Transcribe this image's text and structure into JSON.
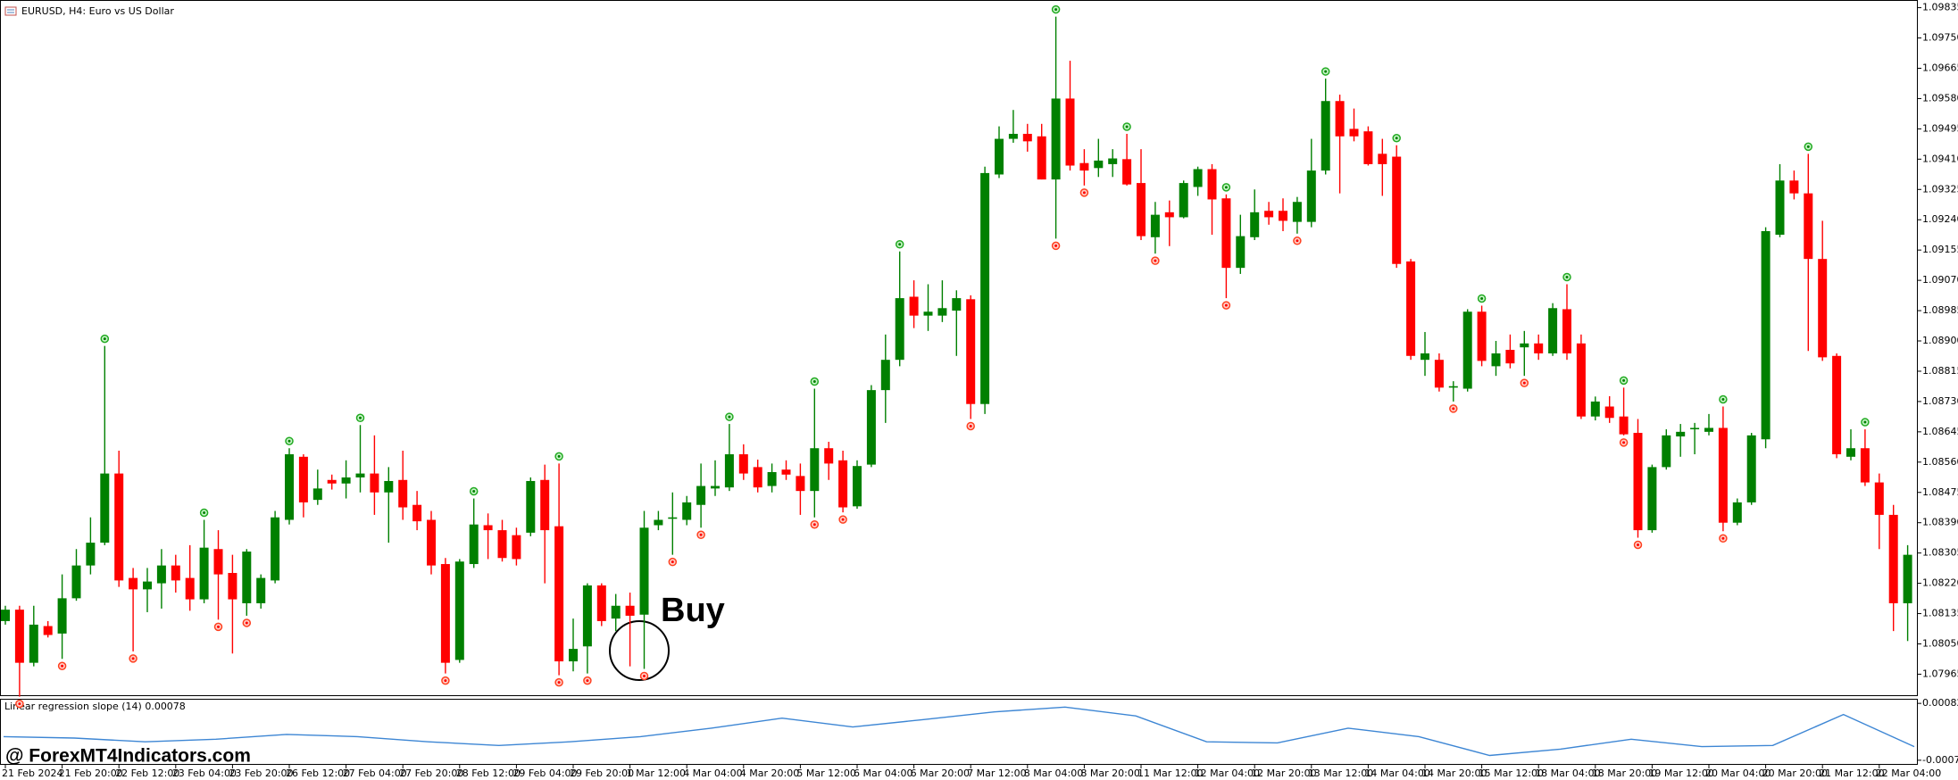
{
  "chart_data": [
    {
      "type": "candlestick",
      "title": "EURUSD, H4:  Euro vs US Dollar",
      "annotation": "Buy",
      "watermark": "@ ForexMT4Indicators.com",
      "up_color": "#008000",
      "down_color": "#ff0000",
      "categories": [
        "21 Feb 2024",
        null,
        null,
        null,
        "21 Feb 20:00",
        null,
        null,
        null,
        "22 Feb 12:00",
        null,
        null,
        null,
        "23 Feb 04:00",
        null,
        null,
        null,
        "23 Feb 20:00",
        null,
        null,
        null,
        "26 Feb 12:00",
        null,
        null,
        null,
        "27 Feb 04:00",
        null,
        null,
        null,
        "27 Feb 20:00",
        null,
        null,
        null,
        "28 Feb 12:00",
        null,
        null,
        null,
        "29 Feb 04:00",
        null,
        null,
        null,
        "29 Feb 20:00",
        null,
        null,
        null,
        "1 Mar 12:00",
        null,
        null,
        null,
        "4 Mar 04:00",
        null,
        null,
        null,
        "4 Mar 20:00",
        null,
        null,
        null,
        "5 Mar 12:00",
        null,
        null,
        null,
        "6 Mar 04:00",
        null,
        null,
        null,
        "6 Mar 20:00",
        null,
        null,
        null,
        "7 Mar 12:00",
        null,
        null,
        null,
        "8 Mar 04:00",
        null,
        null,
        null,
        "8 Mar 20:00",
        null,
        null,
        null,
        "11 Mar 12:00",
        null,
        null,
        null,
        "12 Mar 04:00",
        null,
        null,
        null,
        "12 Mar 20:00",
        null,
        null,
        null,
        "13 Mar 12:00",
        null,
        null,
        null,
        "14 Mar 04:00",
        null,
        null,
        null,
        "14 Mar 20:00",
        null,
        null,
        null,
        "15 Mar 12:00",
        null,
        null,
        null,
        "18 Mar 04:00",
        null,
        null,
        null,
        "18 Mar 20:00",
        null,
        null,
        null,
        "19 Mar 12:00",
        null,
        null,
        null,
        "20 Mar 04:00",
        null,
        null,
        null,
        "20 Mar 20:00",
        null,
        null,
        null,
        "21 Mar 12:00",
        null,
        null,
        null,
        "22 Mar 04:00",
        null,
        null
      ],
      "open": [
        1.08114,
        1.08146,
        1.07997,
        1.081,
        1.08079,
        1.08178,
        1.0827,
        1.08334,
        1.08528,
        1.08235,
        1.08203,
        1.0822,
        1.0827,
        1.08235,
        1.08175,
        1.08316,
        1.08249,
        1.08164,
        1.08164,
        1.08228,
        1.08398,
        1.08575,
        1.08454,
        1.0851,
        1.085,
        1.08517,
        1.08528,
        1.08475,
        1.0851,
        1.0844,
        1.08398,
        1.08274,
        1.08005,
        1.08274,
        1.08383,
        1.08369,
        1.08355,
        1.08362,
        1.0851,
        1.0838,
        1.08001,
        1.08043,
        1.08214,
        1.08121,
        1.08157,
        1.08132,
        1.08383,
        1.08401,
        1.08398,
        1.0844,
        1.08486,
        1.08489,
        1.08582,
        1.08546,
        1.08493,
        1.08539,
        1.08521,
        1.08479,
        1.08599,
        1.08565,
        1.08436,
        1.08553,
        1.08762,
        1.08847,
        1.09024,
        1.08971,
        1.08971,
        1.08985,
        1.09017,
        1.08723,
        1.09367,
        1.09467,
        1.09481,
        1.09474,
        1.09353,
        1.0958,
        1.09399,
        1.09385,
        1.09396,
        1.0941,
        1.09343,
        1.09191,
        1.09261,
        1.09247,
        1.09332,
        1.09382,
        1.093,
        1.09105,
        1.09191,
        1.09265,
        1.09265,
        1.09234,
        1.09234,
        1.09378,
        1.09573,
        1.09495,
        1.09488,
        1.09425,
        1.09417,
        1.09123,
        1.08847,
        1.08847,
        1.08769,
        1.08766,
        1.08982,
        1.08829,
        1.08875,
        1.08882,
        1.08893,
        1.08865,
        1.08989,
        1.08893,
        1.08688,
        1.08716,
        1.08688,
        1.08642,
        1.08369,
        1.08546,
        1.08632,
        1.08652,
        1.08645,
        1.08656,
        1.0839,
        1.08447,
        1.08624,
        1.09198,
        1.0935,
        1.09314,
        1.0913,
        1.08858,
        1.08575,
        1.08599,
        1.08503,
        1.08412,
        1.08164
      ],
      "high": [
        1.08157,
        1.08157,
        1.08157,
        1.08114,
        1.08245,
        1.08316,
        1.08405,
        1.08886,
        1.08592,
        1.08263,
        1.08263,
        1.08316,
        1.083,
        1.08327,
        1.08398,
        1.08369,
        1.083,
        1.08316,
        1.08245,
        1.08423,
        1.08599,
        1.08582,
        1.08539,
        1.08525,
        1.08565,
        1.08664,
        1.08635,
        1.08546,
        1.08592,
        1.08479,
        1.08423,
        1.08291,
        1.08288,
        1.08458,
        1.08416,
        1.08398,
        1.08376,
        1.08517,
        1.08553,
        1.08556,
        1.08121,
        1.0822,
        1.0822,
        1.0819,
        1.08194,
        1.08423,
        1.08423,
        1.08475,
        1.08465,
        1.08556,
        1.08565,
        1.08667,
        1.0861,
        1.08567,
        1.08556,
        1.08565,
        1.08556,
        1.08766,
        1.08617,
        1.08592,
        1.08565,
        1.08776,
        1.08918,
        1.09151,
        1.0907,
        1.09059,
        1.0907,
        1.09042,
        1.09028,
        1.09389,
        1.09502,
        1.09548,
        1.09509,
        1.09509,
        1.0981,
        1.09686,
        1.09438,
        1.09467,
        1.09438,
        1.09481,
        1.09438,
        1.0929,
        1.09294,
        1.0935,
        1.09389,
        1.09396,
        1.09311,
        1.09254,
        1.09325,
        1.0929,
        1.093,
        1.09304,
        1.09467,
        1.09636,
        1.09591,
        1.09552,
        1.09502,
        1.09467,
        1.09449,
        1.0913,
        1.08925,
        1.08865,
        1.08787,
        1.08989,
        1.08999,
        1.089,
        1.08918,
        1.08928,
        1.08918,
        1.09006,
        1.09059,
        1.08918,
        1.08744,
        1.08745,
        1.08769,
        1.08681,
        1.08553,
        1.08652,
        1.08667,
        1.0867,
        1.08695,
        1.08716,
        1.08458,
        1.08642,
        1.09219,
        1.09396,
        1.09378,
        1.09425,
        1.09237,
        1.08865,
        1.08652,
        1.08652,
        1.08528,
        1.0844,
        1.08327
      ],
      "low": [
        1.08104,
        1.07902,
        1.07987,
        1.08068,
        1.08008,
        1.08171,
        1.08245,
        1.08327,
        1.0821,
        1.08029,
        1.08139,
        1.08149,
        1.08194,
        1.08143,
        1.08164,
        1.08118,
        1.08023,
        1.08129,
        1.08149,
        1.0822,
        1.08385,
        1.08405,
        1.0844,
        1.08483,
        1.08458,
        1.08475,
        1.08412,
        1.08334,
        1.08398,
        1.08369,
        1.08245,
        1.07967,
        1.07997,
        1.08263,
        1.08288,
        1.08281,
        1.0827,
        1.08352,
        1.0822,
        1.07962,
        1.07973,
        1.07967,
        1.081,
        1.08086,
        1.07987,
        1.0798,
        1.08369,
        1.083,
        1.08383,
        1.08376,
        1.08465,
        1.08479,
        1.0851,
        1.08475,
        1.08475,
        1.0851,
        1.08412,
        1.08405,
        1.0851,
        1.08419,
        1.08429,
        1.08546,
        1.0867,
        1.08829,
        1.08936,
        1.08928,
        1.08953,
        1.08858,
        1.08681,
        1.08695,
        1.09357,
        1.09456,
        1.09431,
        1.09353,
        1.09187,
        1.09378,
        1.09336,
        1.0936,
        1.0936,
        1.09336,
        1.09183,
        1.09145,
        1.09166,
        1.09244,
        1.09307,
        1.09198,
        1.0902,
        1.09088,
        1.09183,
        1.09226,
        1.09208,
        1.09201,
        1.09219,
        1.09367,
        1.09314,
        1.0946,
        1.09392,
        1.09307,
        1.09105,
        1.08847,
        1.08802,
        1.08758,
        1.0873,
        1.08758,
        1.08829,
        1.08802,
        1.08823,
        1.08802,
        1.08847,
        1.08858,
        1.08847,
        1.08681,
        1.08677,
        1.0867,
        1.08635,
        1.08348,
        1.08362,
        1.08539,
        1.08575,
        1.08582,
        1.08635,
        1.08366,
        1.08383,
        1.0844,
        1.08599,
        1.09191,
        1.09297,
        1.08872,
        1.08844,
        1.08571,
        1.08565,
        1.08493,
        1.08316,
        1.08086,
        1.08058
      ],
      "close": [
        1.08146,
        1.07997,
        1.08104,
        1.08075,
        1.08178,
        1.0827,
        1.08334,
        1.08528,
        1.08228,
        1.08203,
        1.08225,
        1.0827,
        1.08228,
        1.08175,
        1.0832,
        1.08245,
        1.08175,
        1.08309,
        1.08235,
        1.08405,
        1.08582,
        1.08447,
        1.08486,
        1.085,
        1.08517,
        1.08528,
        1.08475,
        1.08507,
        1.08433,
        1.08394,
        1.0827,
        1.07997,
        1.08281,
        1.08385,
        1.08369,
        1.08291,
        1.08288,
        1.08507,
        1.08369,
        1.08001,
        1.08036,
        1.08214,
        1.08114,
        1.08157,
        1.08129,
        1.08376,
        1.08398,
        1.08405,
        1.08447,
        1.08493,
        1.08493,
        1.08582,
        1.08528,
        1.08489,
        1.08532,
        1.08525,
        1.08479,
        1.08599,
        1.08556,
        1.08433,
        1.08549,
        1.08762,
        1.08847,
        1.0902,
        1.08971,
        1.08982,
        1.08992,
        1.0902,
        1.08723,
        1.09371,
        1.09467,
        1.09481,
        1.0946,
        1.09353,
        1.0958,
        1.09392,
        1.09378,
        1.09406,
        1.09412,
        1.09339,
        1.09194,
        1.09254,
        1.09247,
        1.09343,
        1.09382,
        1.09297,
        1.09105,
        1.09194,
        1.09261,
        1.09247,
        1.09237,
        1.0929,
        1.09378,
        1.09573,
        1.09474,
        1.09474,
        1.09396,
        1.09396,
        1.09116,
        1.08858,
        1.08865,
        1.08769,
        1.08773,
        1.08982,
        1.08844,
        1.08865,
        1.08837,
        1.08893,
        1.08865,
        1.08992,
        1.08865,
        1.08688,
        1.0873,
        1.08684,
        1.08638,
        1.08369,
        1.08546,
        1.08635,
        1.08645,
        1.08656,
        1.08656,
        1.0839,
        1.08447,
        1.08635,
        1.09208,
        1.0935,
        1.09314,
        1.0913,
        1.08854,
        1.08582,
        1.08599,
        1.08503,
        1.08412,
        1.08164,
        1.083
      ],
      "signals_high": [
        7,
        14,
        20,
        25,
        33,
        39,
        51,
        57,
        63,
        74,
        79,
        86,
        93,
        98,
        104,
        110,
        114,
        121,
        127,
        131
      ],
      "signals_low": [
        1,
        4,
        9,
        15,
        17,
        31,
        39,
        41,
        45,
        47,
        49,
        57,
        59,
        68,
        74,
        76,
        81,
        86,
        91,
        102,
        107,
        114,
        115,
        121
      ],
      "ylim": [
        1.07906,
        1.09849
      ],
      "yticks": [
        1.09835,
        {
          "value": 1.0975,
          "label": "1.09750"
        },
        1.09665,
        {
          "value": 1.0958,
          "label": "1.09580"
        },
        1.09495,
        {
          "value": 1.0941,
          "label": "1.09410"
        },
        1.09325,
        {
          "value": 1.0924,
          "label": "1.09240"
        },
        1.09155,
        {
          "value": 1.0907,
          "label": "1.09070"
        },
        1.08985,
        {
          "value": 1.089,
          "label": "1.08900"
        },
        1.08815,
        {
          "value": 1.0873,
          "label": "1.08730"
        },
        1.08645,
        {
          "value": 1.0856,
          "label": "1.08560"
        },
        1.08475,
        {
          "value": 1.0839,
          "label": "1.08390"
        },
        1.08305,
        {
          "value": 1.0822,
          "label": "1.08220"
        },
        1.08135,
        {
          "value": 1.0805,
          "label": "1.08050"
        },
        1.07965
      ]
    },
    {
      "type": "line",
      "title": "Linear regression slope (14) 0.00078",
      "color": "#3d86d4",
      "values": [
        -8e-05,
        -0.00012,
        -0.00022,
        -0.00015,
        -2e-05,
        -8e-05,
        -0.00022,
        -0.00032,
        -0.00022,
        -8e-05,
        0.00015,
        0.00042,
        0.00018,
        0.00038,
        0.00059,
        0.00072,
        0.00048,
        -0.00022,
        -0.00025,
        0.00015,
        -8e-05,
        -0.00059,
        -0.00042,
        -0.00015,
        -0.00035,
        -0.00032,
        0.00052,
        -0.00035
      ],
      "ylim": [
        -0.00082,
        0.00092
      ],
      "yticks": [
        0.00082,
        -0.00072
      ]
    }
  ]
}
